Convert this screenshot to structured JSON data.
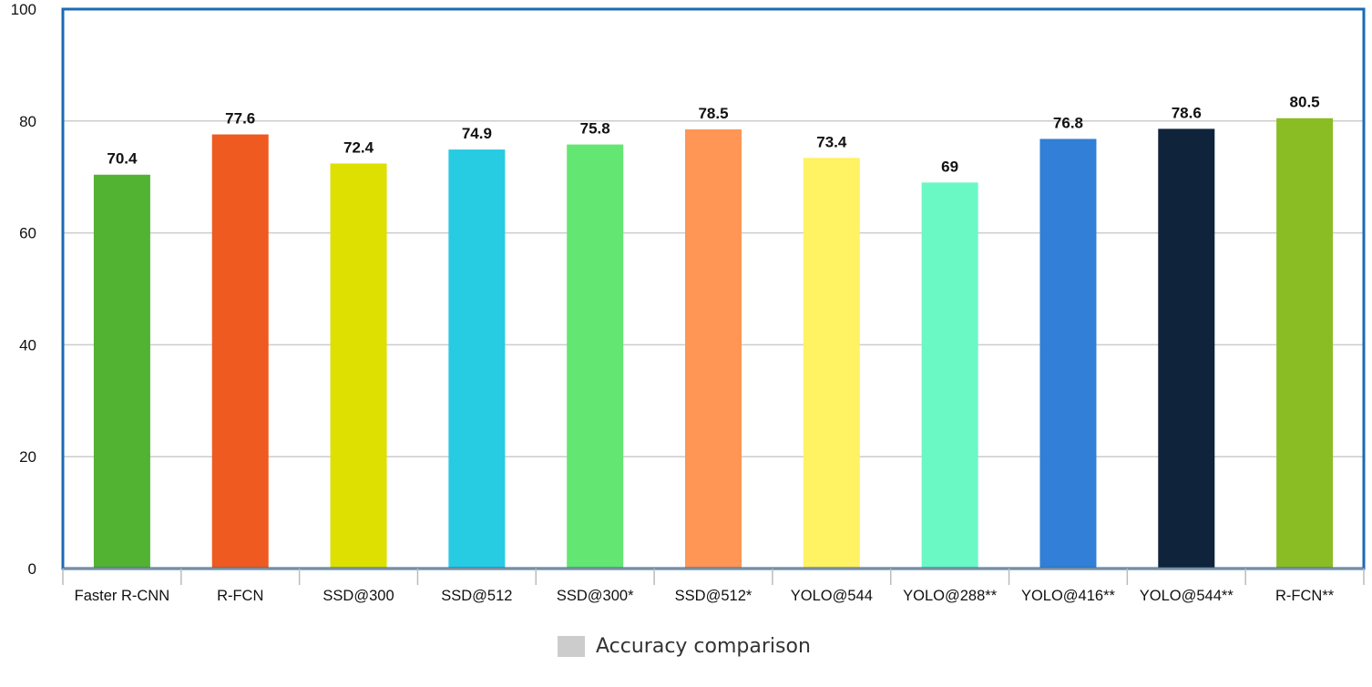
{
  "chart_data": {
    "type": "bar",
    "categories": [
      "Faster R-CNN",
      "R-FCN",
      "SSD@300",
      "SSD@512",
      "SSD@300*",
      "SSD@512*",
      "YOLO@544",
      "YOLO@288**",
      "YOLO@416**",
      "YOLO@544**",
      "R-FCN**"
    ],
    "values": [
      70.4,
      77.6,
      72.4,
      74.9,
      75.8,
      78.5,
      73.4,
      69,
      76.8,
      78.6,
      80.5
    ],
    "data_labels": [
      "70.4",
      "77.6",
      "72.4",
      "74.9",
      "75.8",
      "78.5",
      "73.4",
      "69",
      "76.8",
      "78.6",
      "80.5"
    ],
    "colors": [
      "#52b232",
      "#ee5a20",
      "#dde000",
      "#27cbe2",
      "#64e672",
      "#ff9655",
      "#fff263",
      "#6af8c4",
      "#317fd7",
      "#0f233a",
      "#8abd24"
    ],
    "yticks": [
      0,
      20,
      40,
      60,
      80,
      100
    ],
    "ytick_labels": [
      "0",
      "20",
      "40",
      "60",
      "80",
      "100"
    ],
    "ylim": [
      0,
      100
    ],
    "grid": true,
    "legend": {
      "position": "bottom-center",
      "label": "Accuracy comparison",
      "color": "#cccccc"
    },
    "frame_color": "#1b6ab5"
  }
}
